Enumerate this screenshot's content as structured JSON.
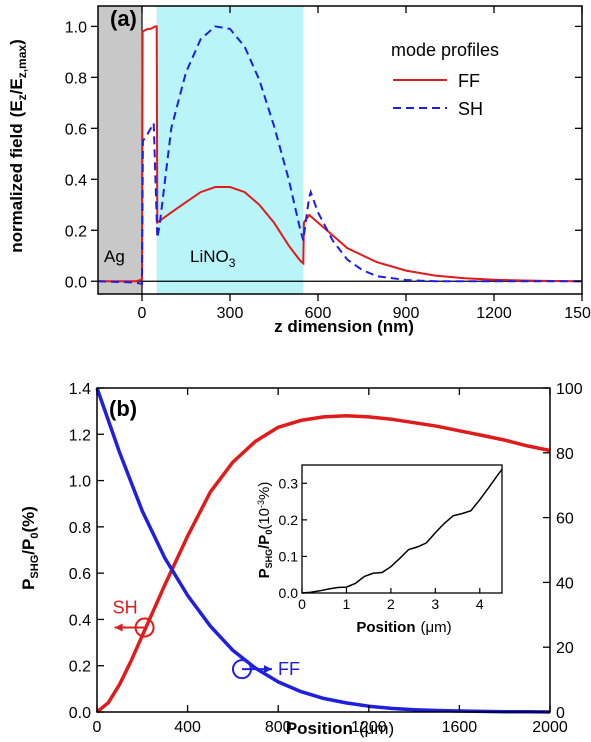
{
  "colors": {
    "ff": "#e01b1b",
    "sh": "#1f1fe0",
    "metal_region": "#c8c8c8",
    "crystal_region": "#b8f4f8",
    "axis": "#000000"
  },
  "chart_data": [
    {
      "type": "line",
      "panel_label": "(a)",
      "xlabel": "z dimension (nm)",
      "ylabel_main": "normalized field",
      "ylabel_paren": "(E",
      "ylabel_sub1": "z",
      "ylabel_mid": "/E",
      "ylabel_sub2": "z,max",
      "ylabel_close": ")",
      "xlim": [
        -150,
        1500
      ],
      "ylim": [
        -0.05,
        1.08
      ],
      "xticks": [
        0,
        300,
        600,
        900,
        1200,
        1500
      ],
      "xtick_labels": [
        "0",
        "300",
        "600",
        "900",
        "1200",
        "1500"
      ],
      "yticks": [
        0.0,
        0.2,
        0.4,
        0.6,
        0.8,
        1.0
      ],
      "ytick_labels": [
        "0.0",
        "0.2",
        "0.4",
        "0.6",
        "0.8",
        "1.0"
      ],
      "legend_title": "mode profiles",
      "legend_position": "top-right",
      "regions": [
        {
          "label": "Ag",
          "x0": -150,
          "x1": 0,
          "color_key": "metal_region"
        },
        {
          "label_main": "LiNO",
          "label_sub": "3",
          "x0": 50,
          "x1": 550,
          "color_key": "crystal_region"
        }
      ],
      "series": [
        {
          "name": "FF",
          "style": "solid",
          "color_key": "ff",
          "x": [
            -150,
            -20,
            -5,
            0,
            2,
            20,
            30,
            45,
            50,
            52,
            100,
            150,
            200,
            250,
            300,
            350,
            400,
            450,
            500,
            540,
            550,
            552,
            570,
            600,
            650,
            700,
            800,
            900,
            1000,
            1100,
            1200,
            1300,
            1400,
            1500
          ],
          "y": [
            0,
            0,
            0.005,
            0.01,
            0.98,
            0.99,
            0.99,
            1.0,
            1.0,
            0.23,
            0.27,
            0.31,
            0.35,
            0.37,
            0.37,
            0.35,
            0.3,
            0.23,
            0.14,
            0.08,
            0.07,
            0.23,
            0.26,
            0.23,
            0.18,
            0.13,
            0.075,
            0.042,
            0.022,
            0.012,
            0.006,
            0.003,
            0.001,
            0
          ]
        },
        {
          "name": "SH",
          "style": "dashed",
          "color_key": "sh",
          "x": [
            -150,
            -20,
            -5,
            0,
            3,
            20,
            40,
            52,
            60,
            100,
            150,
            200,
            250,
            300,
            350,
            400,
            450,
            500,
            540,
            550,
            560,
            570,
            575,
            600,
            650,
            700,
            750,
            800,
            900,
            1000,
            1100,
            1200,
            1500
          ],
          "y": [
            0,
            -0.005,
            -0.01,
            -0.01,
            0.55,
            0.58,
            0.62,
            0.17,
            0.22,
            0.6,
            0.82,
            0.95,
            1.0,
            0.99,
            0.92,
            0.79,
            0.61,
            0.4,
            0.2,
            0.16,
            0.25,
            0.33,
            0.35,
            0.27,
            0.16,
            0.085,
            0.045,
            0.02,
            0.005,
            0,
            0,
            0,
            0
          ]
        }
      ]
    },
    {
      "type": "line",
      "panel_label": "(b)",
      "xlabel_main": "Position",
      "xlabel_unit": "(μm)",
      "ylabel_P": "P",
      "ylabel_sub1": "SHG",
      "ylabel_slash": "/P",
      "ylabel_sub2": "0",
      "ylabel_unit": "(%)",
      "xlim": [
        0,
        2000
      ],
      "ylim_left": [
        0,
        1.4
      ],
      "ylim_right": [
        0,
        100
      ],
      "xticks": [
        0,
        400,
        800,
        1200,
        1600,
        2000
      ],
      "xtick_labels": [
        "0",
        "400",
        "800",
        "1200",
        "1600",
        "2000"
      ],
      "yticks_left": [
        0.0,
        0.2,
        0.4,
        0.6,
        0.8,
        1.0,
        1.2,
        1.4
      ],
      "ytick_labels_left": [
        "0.0",
        "0.2",
        "0.4",
        "0.6",
        "0.8",
        "1.0",
        "1.2",
        "1.4"
      ],
      "yticks_right": [
        0,
        20,
        40,
        60,
        80,
        100
      ],
      "ytick_labels_right": [
        "0",
        "20",
        "40",
        "60",
        "80",
        "100"
      ],
      "annotations": [
        {
          "text": "SH",
          "color_key": "ff",
          "circle_x": 210,
          "circle_y": 0.365,
          "arrow": "left",
          "axis": "left"
        },
        {
          "text": "FF",
          "color_key": "sh",
          "circle_x": 640,
          "circle_y": 0.185,
          "arrow": "right",
          "axis": "left"
        }
      ],
      "series": [
        {
          "name": "SH",
          "axis": "left",
          "color_key": "ff",
          "x": [
            0,
            50,
            100,
            150,
            200,
            250,
            300,
            400,
            500,
            600,
            700,
            800,
            900,
            1000,
            1100,
            1200,
            1300,
            1400,
            1500,
            1600,
            1700,
            1800,
            1900,
            2000
          ],
          "y": [
            0,
            0.04,
            0.12,
            0.22,
            0.33,
            0.44,
            0.55,
            0.76,
            0.95,
            1.08,
            1.17,
            1.23,
            1.26,
            1.275,
            1.28,
            1.275,
            1.265,
            1.25,
            1.235,
            1.215,
            1.195,
            1.175,
            1.15,
            1.13
          ]
        },
        {
          "name": "FF",
          "axis": "right",
          "color_key": "sh",
          "x": [
            0,
            100,
            200,
            300,
            400,
            500,
            600,
            700,
            800,
            900,
            1000,
            1100,
            1200,
            1300,
            1400,
            1500,
            1600,
            1700,
            1800,
            1900,
            2000
          ],
          "y": [
            100,
            80,
            62,
            47.5,
            36,
            26.5,
            19,
            13.5,
            9.3,
            6.3,
            4.2,
            2.8,
            1.8,
            1.1,
            0.7,
            0.45,
            0.3,
            0.2,
            0.1,
            0.05,
            0
          ]
        }
      ],
      "inset": {
        "type": "line",
        "xlabel_main": "Position",
        "xlabel_unit": "(μm)",
        "ylabel_P": "P",
        "ylabel_sub1": "SHG",
        "ylabel_slash": "/P",
        "ylabel_sub2": "0",
        "ylabel_unit_pre": "(10",
        "ylabel_unit_sup": "-3",
        "ylabel_unit_post": "%)",
        "xlim": [
          0,
          4.5
        ],
        "ylim": [
          0,
          0.35
        ],
        "xticks": [
          0,
          1,
          2,
          3,
          4
        ],
        "xtick_labels": [
          "0",
          "1",
          "2",
          "3",
          "4"
        ],
        "yticks": [
          0.0,
          0.1,
          0.2,
          0.3
        ],
        "ytick_labels": [
          "0.0",
          "0.1",
          "0.2",
          "0.3"
        ],
        "series": [
          {
            "name": "inset-SH",
            "color_key": "axis",
            "x": [
              0,
              0.2,
              0.4,
              0.6,
              0.8,
              1.0,
              1.2,
              1.4,
              1.6,
              1.8,
              2.0,
              2.2,
              2.4,
              2.6,
              2.8,
              3.0,
              3.2,
              3.4,
              3.6,
              3.8,
              4.0,
              4.2,
              4.4,
              4.5
            ],
            "y": [
              0,
              0.002,
              0.006,
              0.011,
              0.015,
              0.016,
              0.026,
              0.045,
              0.054,
              0.056,
              0.072,
              0.095,
              0.119,
              0.126,
              0.137,
              0.165,
              0.19,
              0.211,
              0.217,
              0.225,
              0.255,
              0.288,
              0.322,
              0.338
            ]
          }
        ]
      }
    }
  ]
}
